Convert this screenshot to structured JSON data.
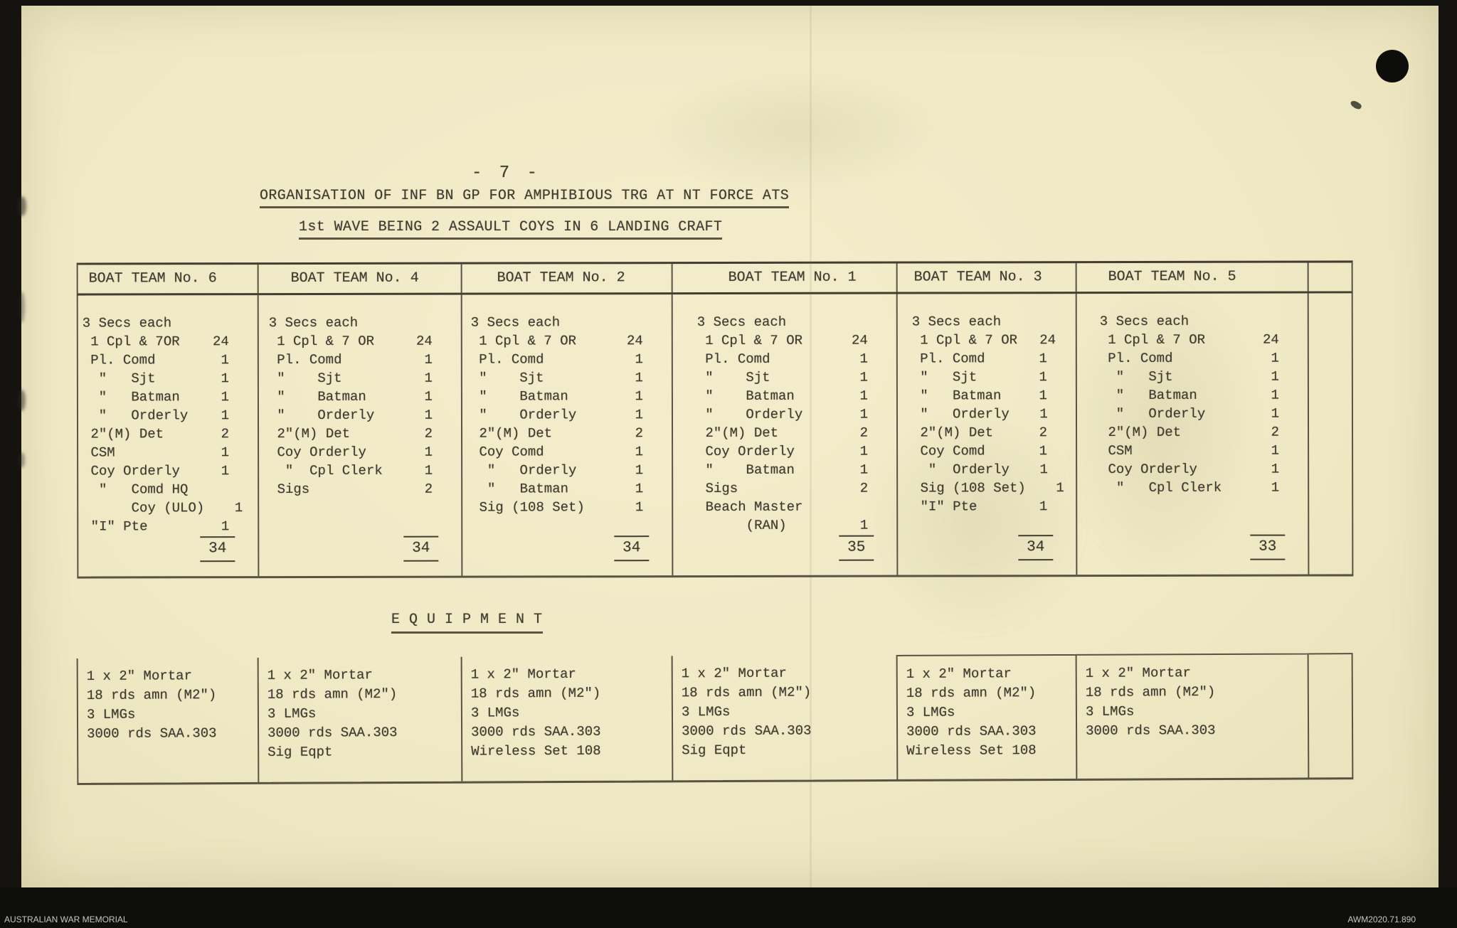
{
  "page": {
    "page_number": "- 7 -",
    "title": "ORGANISATION OF INF BN GP FOR AMPHIBIOUS TRG AT NT FORCE ATS",
    "subtitle": "1st WAVE BEING 2 ASSAULT COYS IN 6 LANDING CRAFT",
    "equipment_heading": "E Q U I P M E N T"
  },
  "colors": {
    "paper": "#efe9c5",
    "ink": "#3e3a2f",
    "rule": "#4a4434",
    "frame": "#141310"
  },
  "boat_teams": [
    {
      "name": "BOAT TEAM No. 6",
      "secs_line": "3 Secs each",
      "rows": [
        {
          "label": " 1 Cpl & 7OR",
          "value": "24"
        },
        {
          "label": " Pl. Comd",
          "value": "1"
        },
        {
          "label": "  \"   Sjt",
          "value": "1"
        },
        {
          "label": "  \"   Batman",
          "value": "1"
        },
        {
          "label": "  \"   Orderly",
          "value": "1"
        },
        {
          "label": " 2\"(M) Det",
          "value": "2"
        },
        {
          "label": " CSM",
          "value": "1"
        },
        {
          "label": " Coy Orderly",
          "value": "1"
        },
        {
          "label": "  \"   Comd HQ",
          "value": ""
        },
        {
          "label": "      Coy (ULO)",
          "value": "1"
        },
        {
          "label": " \"I\" Pte",
          "value": "1"
        }
      ],
      "total": "34",
      "equipment": [
        "1 x 2\" Mortar",
        "18 rds amn (M2\")",
        "3 LMGs",
        "3000 rds SAA.303"
      ]
    },
    {
      "name": "BOAT TEAM No. 4",
      "secs_line": "3 Secs each",
      "rows": [
        {
          "label": " 1 Cpl & 7 OR",
          "value": "24"
        },
        {
          "label": " Pl. Comd",
          "value": "1"
        },
        {
          "label": " \"    Sjt",
          "value": "1"
        },
        {
          "label": " \"    Batman",
          "value": "1"
        },
        {
          "label": " \"    Orderly",
          "value": "1"
        },
        {
          "label": " 2\"(M) Det",
          "value": "2"
        },
        {
          "label": " Coy Orderly",
          "value": "1"
        },
        {
          "label": "  \"  Cpl Clerk",
          "value": "1"
        },
        {
          "label": " Sigs",
          "value": "2"
        }
      ],
      "total": "34",
      "equipment": [
        "1 x 2\" Mortar",
        "18 rds amn (M2\")",
        "3 LMGs",
        "3000 rds SAA.303",
        "Sig Eqpt"
      ]
    },
    {
      "name": "BOAT TEAM No. 2",
      "secs_line": "3 Secs each",
      "rows": [
        {
          "label": " 1 Cpl & 7 OR",
          "value": "24"
        },
        {
          "label": " Pl. Comd",
          "value": "1"
        },
        {
          "label": " \"    Sjt",
          "value": "1"
        },
        {
          "label": " \"    Batman",
          "value": "1"
        },
        {
          "label": " \"    Orderly",
          "value": "1"
        },
        {
          "label": " 2\"(M) Det",
          "value": "2"
        },
        {
          "label": " Coy Comd",
          "value": "1"
        },
        {
          "label": "  \"   Orderly",
          "value": "1"
        },
        {
          "label": "  \"   Batman",
          "value": "1"
        },
        {
          "label": " Sig (108 Set)",
          "value": "1"
        }
      ],
      "total": "34",
      "equipment": [
        "1 x 2\" Mortar",
        "18 rds amn (M2\")",
        "3 LMGs",
        "3000 rds SAA.303",
        "Wireless Set 108"
      ]
    },
    {
      "name": "BOAT TEAM No. 1",
      "secs_line": "3 Secs each",
      "rows": [
        {
          "label": " 1 Cpl & 7 OR",
          "value": "24"
        },
        {
          "label": " Pl. Comd",
          "value": "1"
        },
        {
          "label": " \"    Sjt",
          "value": "1"
        },
        {
          "label": " \"    Batman",
          "value": "1"
        },
        {
          "label": " \"    Orderly",
          "value": "1"
        },
        {
          "label": " 2\"(M) Det",
          "value": "2"
        },
        {
          "label": " Coy Orderly",
          "value": "1"
        },
        {
          "label": " \"    Batman",
          "value": "1"
        },
        {
          "label": " Sigs",
          "value": "2"
        },
        {
          "label": " Beach Master",
          "value": ""
        },
        {
          "label": "      (RAN)",
          "value": "1"
        }
      ],
      "total": "35",
      "equipment": [
        "1 x 2\" Mortar",
        "18 rds amn (M2\")",
        "3 LMGs",
        "3000 rds SAA.303",
        "Sig Eqpt"
      ]
    },
    {
      "name": "BOAT TEAM No. 3",
      "secs_line": "3 Secs each",
      "rows": [
        {
          "label": " 1 Cpl & 7 OR",
          "value": "24"
        },
        {
          "label": " Pl. Comd",
          "value": "1"
        },
        {
          "label": " \"   Sjt",
          "value": "1"
        },
        {
          "label": " \"   Batman",
          "value": "1"
        },
        {
          "label": " \"   Orderly",
          "value": "1"
        },
        {
          "label": " 2\"(M) Det",
          "value": "2"
        },
        {
          "label": " Coy Comd",
          "value": "1"
        },
        {
          "label": "  \"  Orderly",
          "value": "1"
        },
        {
          "label": " Sig (108 Set)",
          "value": "1"
        },
        {
          "label": " \"I\" Pte",
          "value": "1"
        }
      ],
      "total": "34",
      "equipment": [
        "1 x 2\" Mortar",
        "18 rds amn (M2\")",
        "3 LMGs",
        "3000 rds SAA.303",
        "Wireless Set 108"
      ]
    },
    {
      "name": "BOAT TEAM No. 5",
      "secs_line": "3 Secs each",
      "rows": [
        {
          "label": " 1 Cpl & 7 OR",
          "value": "24"
        },
        {
          "label": " Pl. Comd",
          "value": "1"
        },
        {
          "label": "  \"   Sjt",
          "value": "1"
        },
        {
          "label": "  \"   Batman",
          "value": "1"
        },
        {
          "label": "  \"   Orderly",
          "value": "1"
        },
        {
          "label": " 2\"(M) Det",
          "value": "2"
        },
        {
          "label": " CSM",
          "value": "1"
        },
        {
          "label": " Coy Orderly",
          "value": "1"
        },
        {
          "label": "  \"   Cpl Clerk",
          "value": "1"
        }
      ],
      "total": "33",
      "equipment": [
        "1 x 2\" Mortar",
        "18 rds amn (M2\")",
        "3 LMGs",
        "3000 rds SAA.303"
      ]
    }
  ],
  "footer": {
    "left": "AUSTRALIAN WAR MEMORIAL",
    "right": "AWM2020.71.890"
  }
}
